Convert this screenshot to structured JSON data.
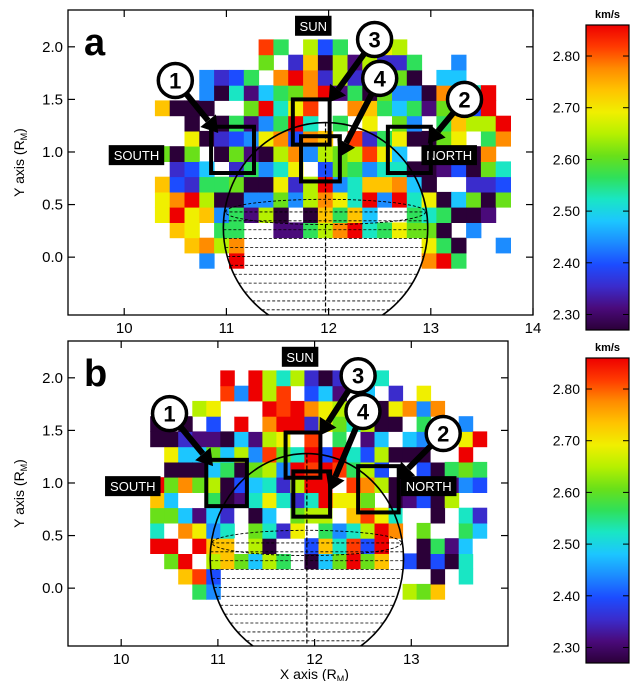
{
  "colors": {
    "scale": [
      "#2b0038",
      "#4a0a7a",
      "#3a2ccc",
      "#1c4cff",
      "#1c8cff",
      "#1cc6ff",
      "#19e6c4",
      "#2fe05a",
      "#69e019",
      "#b6f000",
      "#f0ef00",
      "#ffc400",
      "#ff8c00",
      "#ff3a00",
      "#ee0000"
    ],
    "limb": "#000000",
    "frame": "#000000"
  },
  "chart_data": [
    {
      "type": "heatmap",
      "panel_letter": "a",
      "xlabel": "",
      "ylabel": "Y axis (R",
      "ylabel_sub": "M",
      "ylabel_close": ")",
      "xlim": [
        9.45,
        14.0
      ],
      "ylim": [
        -0.55,
        2.35
      ],
      "x_ticks": [
        {
          "v": 10,
          "label": "10"
        },
        {
          "v": 11,
          "label": "11"
        },
        {
          "v": 12,
          "label": "12"
        },
        {
          "v": 13,
          "label": "13"
        },
        {
          "v": 14,
          "label": "14"
        }
      ],
      "y_ticks": [
        {
          "v": 0.0,
          "label": "0.0"
        },
        {
          "v": 0.5,
          "label": "0.5"
        },
        {
          "v": 1.0,
          "label": "1.0"
        },
        {
          "v": 1.5,
          "label": "1.5"
        },
        {
          "v": 2.0,
          "label": "2.0"
        }
      ],
      "planet": {
        "cx": 11.97,
        "cy": 0.28,
        "r": 1.0
      },
      "labels": [
        {
          "text": "SUN",
          "x": 11.85,
          "y": 2.2
        },
        {
          "text": "SOUTH",
          "x": 10.12,
          "y": 0.97
        },
        {
          "text": "NORTH",
          "x": 13.18,
          "y": 0.97
        }
      ],
      "boxes": [
        {
          "id": "1",
          "x": 10.85,
          "y": 0.8,
          "w": 0.42,
          "h": 0.44
        },
        {
          "id": "2",
          "x": 12.58,
          "y": 0.8,
          "w": 0.42,
          "h": 0.44
        },
        {
          "id": "3",
          "x": 11.65,
          "y": 1.07,
          "w": 0.36,
          "h": 0.43
        },
        {
          "id": "4",
          "x": 11.73,
          "y": 0.72,
          "w": 0.38,
          "h": 0.43
        }
      ],
      "callouts": [
        {
          "id": "1",
          "cx": 10.5,
          "cy": 1.68,
          "tx": 10.92,
          "ty": 1.18
        },
        {
          "id": "2",
          "cx": 13.33,
          "cy": 1.5,
          "tx": 12.97,
          "ty": 1.08
        },
        {
          "id": "3",
          "cx": 12.45,
          "cy": 2.07,
          "tx": 12.0,
          "ty": 1.47
        },
        {
          "id": "4",
          "cx": 12.5,
          "cy": 1.7,
          "tx": 12.1,
          "ty": 0.95
        }
      ],
      "colorbar": {
        "unit": "km/s",
        "min": 2.27,
        "max": 2.86,
        "ticks": [
          "2.80",
          "2.70",
          "2.60",
          "2.50",
          "2.40",
          "2.30"
        ],
        "tick_values": [
          2.8,
          2.7,
          2.6,
          2.5,
          2.4,
          2.3
        ]
      }
    },
    {
      "type": "heatmap",
      "panel_letter": "b",
      "xlabel": "X axis (R",
      "xlabel_sub": "M",
      "xlabel_close": ")",
      "ylabel": "Y axis (R",
      "ylabel_sub": "M",
      "ylabel_close": ")",
      "xlim": [
        9.45,
        14.0
      ],
      "ylim": [
        -0.55,
        2.35
      ],
      "x_ticks": [
        {
          "v": 10,
          "label": "10"
        },
        {
          "v": 11,
          "label": "11"
        },
        {
          "v": 12,
          "label": "12"
        },
        {
          "v": 13,
          "label": "13"
        }
      ],
      "y_ticks": [
        {
          "v": 0.0,
          "label": "0.0"
        },
        {
          "v": 0.5,
          "label": "0.5"
        },
        {
          "v": 1.0,
          "label": "1.0"
        },
        {
          "v": 1.5,
          "label": "1.5"
        },
        {
          "v": 2.0,
          "label": "2.0"
        }
      ],
      "planet": {
        "cx": 11.92,
        "cy": 0.28,
        "r": 1.0
      },
      "labels": [
        {
          "text": "SUN",
          "x": 11.85,
          "y": 2.2
        },
        {
          "text": "SOUTH",
          "x": 10.12,
          "y": 0.97
        },
        {
          "text": "NORTH",
          "x": 13.18,
          "y": 0.97
        }
      ],
      "boxes": [
        {
          "id": "1",
          "x": 10.88,
          "y": 0.78,
          "w": 0.42,
          "h": 0.44
        },
        {
          "id": "2",
          "x": 12.45,
          "y": 0.72,
          "w": 0.42,
          "h": 0.44
        },
        {
          "id": "3",
          "x": 11.7,
          "y": 1.05,
          "w": 0.36,
          "h": 0.43
        },
        {
          "id": "4",
          "x": 11.78,
          "y": 0.68,
          "w": 0.38,
          "h": 0.43
        }
      ],
      "callouts": [
        {
          "id": "1",
          "cx": 10.5,
          "cy": 1.66,
          "tx": 10.95,
          "ty": 1.16
        },
        {
          "id": "2",
          "cx": 13.33,
          "cy": 1.47,
          "tx": 12.85,
          "ty": 1.03
        },
        {
          "id": "3",
          "cx": 12.45,
          "cy": 2.02,
          "tx": 12.05,
          "ty": 1.45
        },
        {
          "id": "4",
          "cx": 12.5,
          "cy": 1.68,
          "tx": 12.15,
          "ty": 0.92
        }
      ],
      "colorbar": {
        "unit": "km/s",
        "min": 2.27,
        "max": 2.86,
        "ticks": [
          "2.80",
          "2.70",
          "2.60",
          "2.50",
          "2.40",
          "2.30"
        ],
        "tick_values": [
          2.8,
          2.7,
          2.6,
          2.5,
          2.4,
          2.3
        ]
      }
    }
  ]
}
